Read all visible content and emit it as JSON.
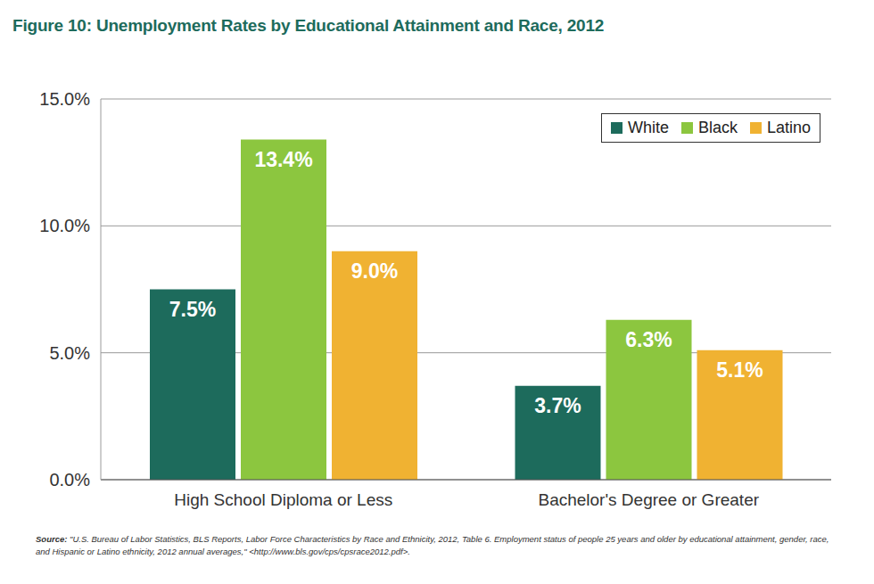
{
  "chart_data": {
    "type": "bar",
    "title": "Figure 10: Unemployment Rates by Educational Attainment and Race, 2012",
    "categories": [
      "High School Diploma or Less",
      "Bachelor's Degree or Greater"
    ],
    "series": [
      {
        "name": "White",
        "color": "#1d6b5c",
        "values": [
          7.5,
          3.7
        ],
        "value_labels": [
          "7.5%",
          "3.7%"
        ]
      },
      {
        "name": "Black",
        "color": "#8cc63f",
        "values": [
          13.4,
          6.3
        ],
        "value_labels": [
          "13.4%",
          "6.3%"
        ]
      },
      {
        "name": "Latino",
        "color": "#f0b232",
        "values": [
          9.0,
          5.1
        ],
        "value_labels": [
          "9.0%",
          "5.1%"
        ]
      }
    ],
    "ylim": [
      0,
      15
    ],
    "yticks": [
      {
        "value": 0,
        "label": "0.0%"
      },
      {
        "value": 5,
        "label": "5.0%"
      },
      {
        "value": 10,
        "label": "10.0%"
      },
      {
        "value": 15,
        "label": "15.0%"
      }
    ],
    "grid": true,
    "legend": "upper right",
    "data_labels": true,
    "note": "Source: \"U.S. Bureau of Labor Statistics, BLS Reports, Labor Force Characteristics by Race and Ethnicity, 2012, Table 6. Employment status of people 25 years and older by educational attainment, gender, race, and Hispanic or Latino ethnicity, 2012 annual averages,\" <http://www.bls.gov/cps/cpsrace2012.pdf>."
  }
}
